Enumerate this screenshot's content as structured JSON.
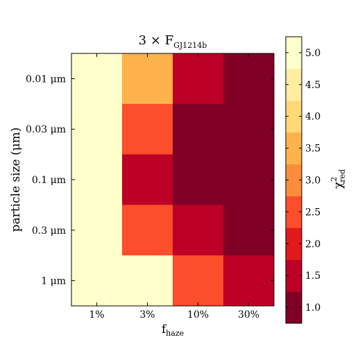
{
  "chart_data": {
    "type": "heatmap",
    "title": {
      "base": "3 × F",
      "subscript": "GJ1214b"
    },
    "xlabel": {
      "base": "f",
      "subscript": "haze"
    },
    "ylabel": "particle size (μm)",
    "x_categories": [
      "1%",
      "3%",
      "10%",
      "30%"
    ],
    "y_categories": [
      "0.01 μm",
      "0.03 μm",
      "0.1 μm",
      "0.3 μm",
      "1 μm"
    ],
    "values": [
      [
        5.25,
        3.6,
        1.5,
        0.9
      ],
      [
        5.25,
        2.7,
        0.9,
        0.9
      ],
      [
        5.25,
        1.5,
        0.9,
        0.9
      ],
      [
        5.25,
        2.7,
        1.5,
        0.9
      ],
      [
        5.25,
        5.25,
        2.7,
        1.5
      ]
    ],
    "colorbar": {
      "label": {
        "base": "χ",
        "superscript": "2",
        "subscript": "red"
      },
      "range": [
        0.75,
        5.25
      ],
      "ticks": [
        "1.0",
        "1.5",
        "2.0",
        "2.5",
        "3.0",
        "3.5",
        "4.0",
        "4.5",
        "5.0"
      ],
      "tick_values": [
        1.0,
        1.5,
        2.0,
        2.5,
        3.0,
        3.5,
        4.0,
        4.5,
        5.0
      ],
      "colors": [
        "#800026",
        "#bd0026",
        "#e31a1c",
        "#fc4e2a",
        "#fd8d3c",
        "#feb24c",
        "#fed976",
        "#ffeda0",
        "#ffffcc"
      ]
    }
  }
}
